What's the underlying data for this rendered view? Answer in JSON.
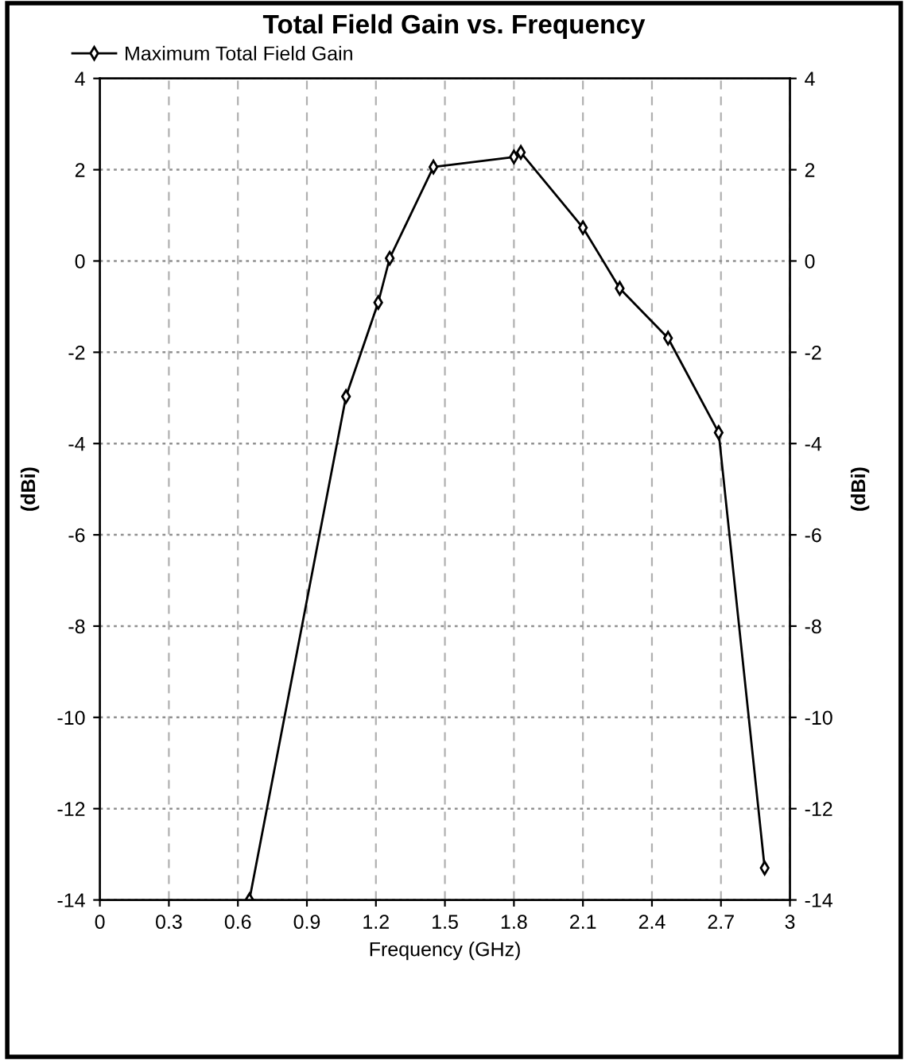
{
  "chart_data": {
    "type": "line",
    "title": "Total Field Gain vs. Frequency",
    "xlabel": "Frequency (GHz)",
    "ylabel": "(dBi)",
    "y2label": "(dBi)",
    "series": [
      {
        "name": "Maximum Total Field Gain",
        "color": "#000000",
        "x": [
          0.65,
          1.07,
          1.21,
          1.26,
          1.45,
          1.8,
          1.83,
          2.1,
          2.26,
          2.47,
          2.69,
          2.89
        ],
        "values": [
          -14,
          -2.97,
          -0.91,
          0.06,
          2.06,
          2.28,
          2.38,
          0.73,
          -0.6,
          -1.69,
          -3.76,
          -13.3
        ]
      }
    ],
    "xlim": [
      0,
      3
    ],
    "xticks": [
      0,
      0.3,
      0.6,
      0.9,
      1.2,
      1.5,
      1.8,
      2.1,
      2.4,
      2.7,
      3
    ],
    "ylim": [
      -14,
      4
    ],
    "yticks": [
      -14,
      -12,
      -10,
      -8,
      -6,
      -4,
      -2,
      0,
      2,
      4
    ],
    "y2lim": [
      -14,
      4
    ],
    "y2ticks": [
      -14,
      -12,
      -10,
      -8,
      -6,
      -4,
      -2,
      0,
      2,
      4
    ],
    "grid": true,
    "legend": "top left",
    "marker": "diamond",
    "line_style": "solid"
  }
}
